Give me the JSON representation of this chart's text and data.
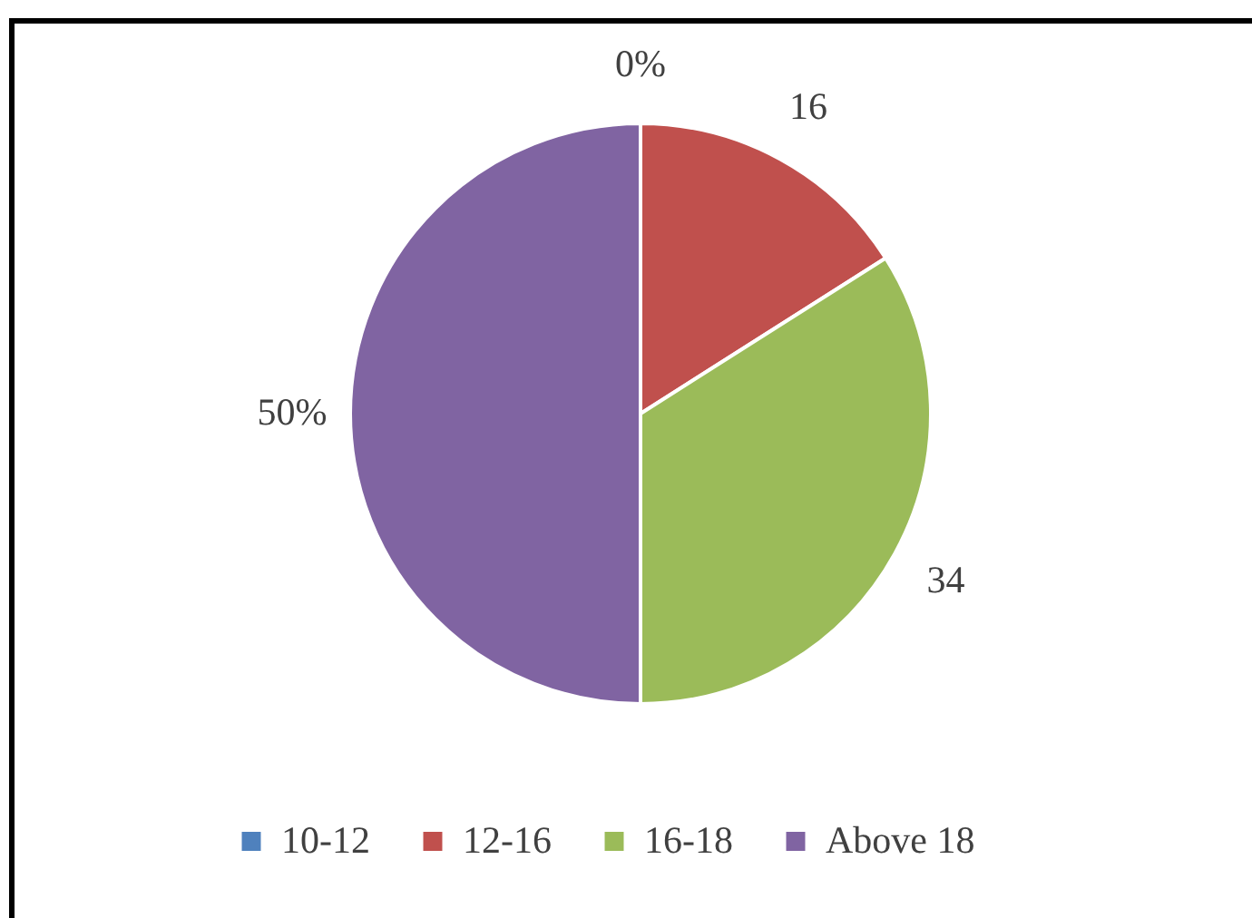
{
  "chart_data": {
    "type": "pie",
    "categories": [
      "10-12",
      "12-16",
      "16-18",
      "Above 18"
    ],
    "values": [
      0,
      16,
      34,
      50
    ],
    "colors": [
      "#4f81bd",
      "#c0504d",
      "#9bbb59",
      "#8064a2"
    ],
    "value_labels": [
      "0%",
      "16",
      "34",
      "50%"
    ],
    "legend": "bottom"
  }
}
